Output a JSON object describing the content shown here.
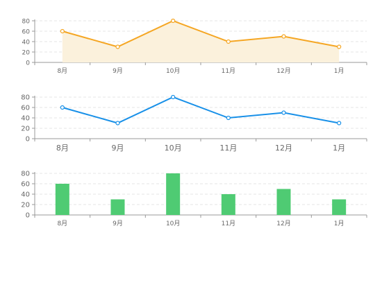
{
  "chart_data": [
    {
      "type": "area",
      "categories": [
        "8月",
        "9月",
        "10月",
        "11月",
        "12月",
        "1月"
      ],
      "series": [
        {
          "values": [
            60,
            30,
            80,
            40,
            50,
            30
          ]
        }
      ],
      "ylim": [
        0,
        80
      ],
      "yticks": [
        0,
        20,
        40,
        60,
        80
      ],
      "grid": true,
      "colors": {
        "line": "#f5a623",
        "fill": "#fbf1dc"
      }
    },
    {
      "type": "line",
      "categories": [
        "8月",
        "9月",
        "10月",
        "11月",
        "12月",
        "1月"
      ],
      "series": [
        {
          "values": [
            60,
            30,
            80,
            40,
            50,
            30
          ]
        }
      ],
      "ylim": [
        0,
        80
      ],
      "yticks": [
        0,
        20,
        40,
        60,
        80
      ],
      "grid": true,
      "colors": {
        "line": "#1890e8"
      }
    },
    {
      "type": "bar",
      "categories": [
        "8月",
        "9月",
        "10月",
        "11月",
        "12月",
        "1月"
      ],
      "series": [
        {
          "values": [
            60,
            30,
            80,
            40,
            50,
            30
          ]
        }
      ],
      "ylim": [
        0,
        80
      ],
      "yticks": [
        0,
        20,
        40,
        60,
        80
      ],
      "grid": true,
      "colors": {
        "bar": "#4fcb73"
      }
    }
  ],
  "colors": {
    "axis": "#999999",
    "grid": "#e6e6e6",
    "label": "#666666"
  }
}
